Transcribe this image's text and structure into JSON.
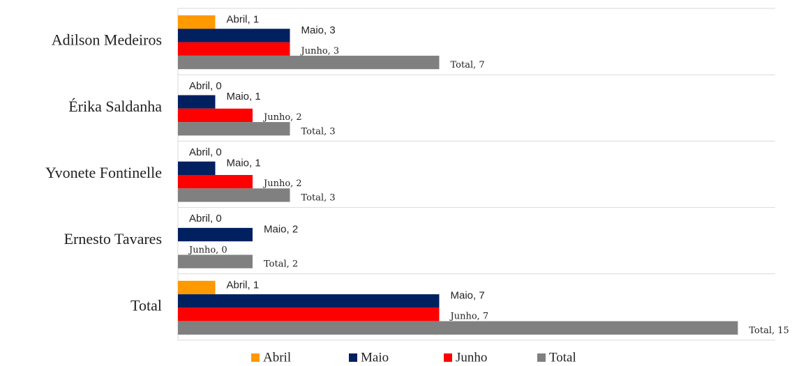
{
  "chart_data": {
    "type": "barh",
    "categories": [
      "Adilson Medeiros",
      "Érika Saldanha",
      "Yvonete Fontinelle",
      "Ernesto Tavares",
      "Total"
    ],
    "series": [
      {
        "name": "Abril",
        "color": "#ff9900",
        "values": [
          1,
          0,
          0,
          0,
          1
        ],
        "value_labels": [
          "Abril, 1",
          "Abril, 0",
          "Abril, 0",
          "Abril, 0",
          "Abril, 1"
        ]
      },
      {
        "name": "Maio",
        "color": "#002060",
        "values": [
          3,
          1,
          1,
          2,
          7
        ],
        "value_labels": [
          "Maio, 3",
          "Maio, 1",
          "Maio, 1",
          "Maio, 2",
          "Maio, 7"
        ]
      },
      {
        "name": "Junho",
        "color": "#ff0000",
        "values": [
          3,
          2,
          2,
          0,
          7
        ],
        "value_labels": [
          "Junho, 3",
          "Junho, 2",
          "Junho, 2",
          "Junho, 0",
          "Junho, 7"
        ]
      },
      {
        "name": "Total",
        "color": "#808080",
        "values": [
          7,
          3,
          3,
          2,
          15
        ],
        "value_labels": [
          "Total, 7",
          "Total, 3",
          "Total, 3",
          "Total, 2",
          "Total, 15"
        ]
      }
    ],
    "xlim": [
      0,
      16
    ],
    "legend": "bottom"
  }
}
